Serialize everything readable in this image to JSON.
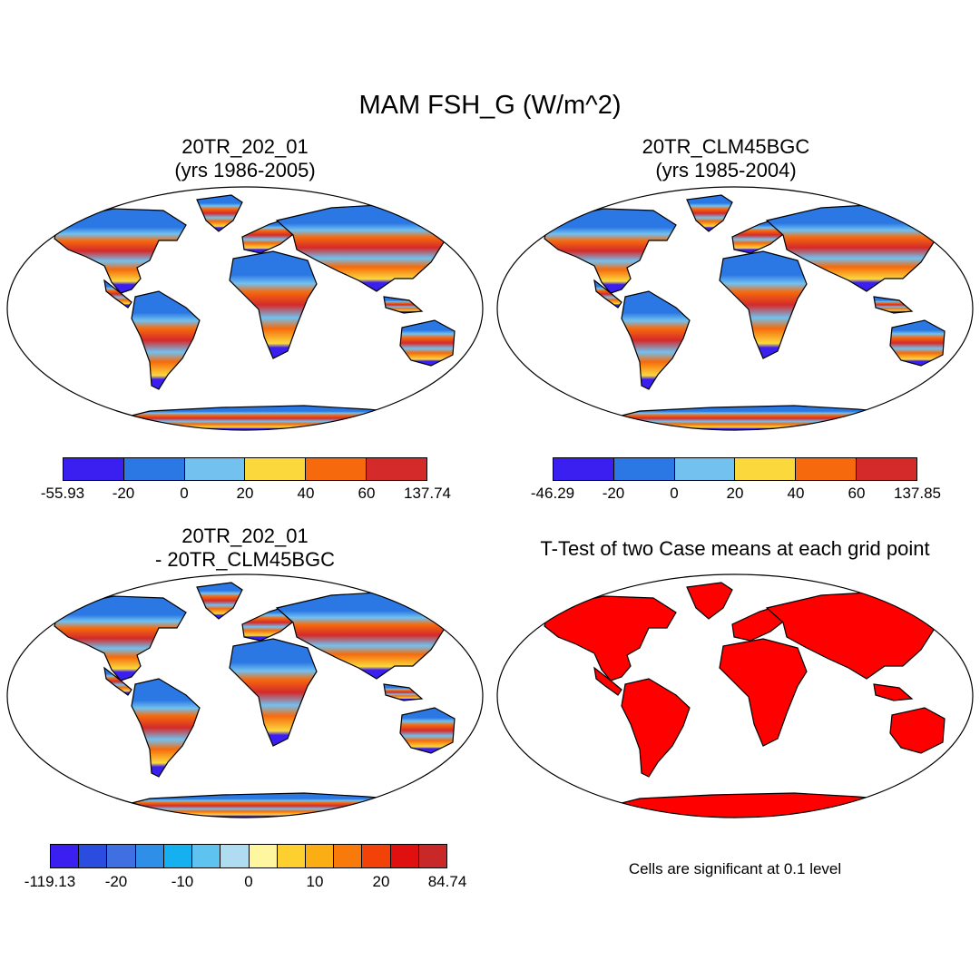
{
  "figure": {
    "title": "MAM FSH_G (W/m^2)",
    "note": "Cells are significant at 0.1 level"
  },
  "panels": [
    {
      "id": "p1",
      "title": "20TR_202_01\n(yrs 1986-2005)",
      "colorbar": {
        "labels": [
          "-55.93",
          "-20",
          "0",
          "20",
          "40",
          "60",
          "137.74"
        ],
        "colors": [
          "#3b1ef0",
          "#2b78e4",
          "#72c1ef",
          "#fbd93c",
          "#f66a0d",
          "#d42a2a"
        ]
      }
    },
    {
      "id": "p2",
      "title": "20TR_CLM45BGC\n(yrs 1985-2004)",
      "colorbar": {
        "labels": [
          "-46.29",
          "-20",
          "0",
          "20",
          "40",
          "60",
          "137.85"
        ],
        "colors": [
          "#3b1ef0",
          "#2b78e4",
          "#72c1ef",
          "#fbd93c",
          "#f66a0d",
          "#d42a2a"
        ]
      }
    },
    {
      "id": "p3",
      "title": "20TR_202_01\n- 20TR_CLM45BGC",
      "colorbar": {
        "labels": [
          "-119.13",
          "-20",
          "-10",
          "0",
          "10",
          "20",
          "84.74"
        ],
        "colors": [
          "#3b1ef0",
          "#2a4de0",
          "#3f6fe0",
          "#2f8fe8",
          "#14b0f0",
          "#5fc3f0",
          "#b0dcf2",
          "#fff6a0",
          "#fdd030",
          "#fbad14",
          "#f77a0b",
          "#f2420a",
          "#e01010",
          "#c82828"
        ]
      }
    },
    {
      "id": "p4",
      "title": "T-Test of two Case means at each grid point"
    }
  ]
}
